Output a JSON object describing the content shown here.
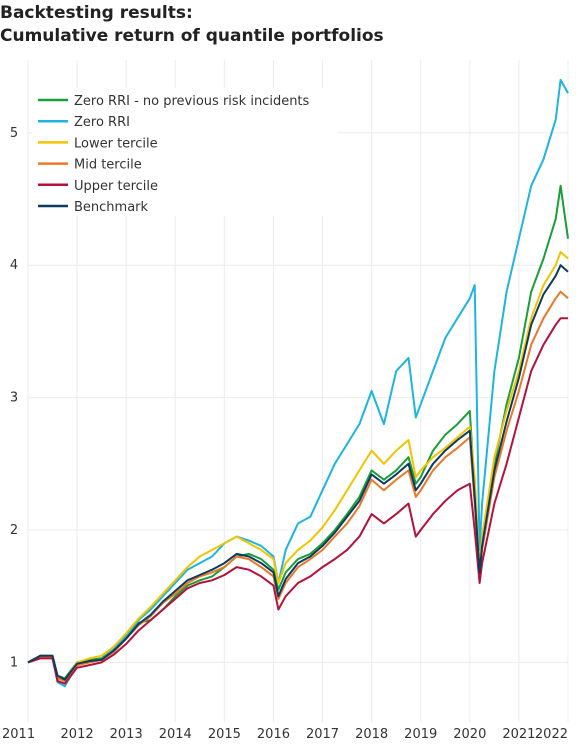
{
  "chart_data": {
    "type": "line",
    "title_line1": "Backtesting results:",
    "title_line2": "Cumulative return of quantile portfolios",
    "xlabel": "",
    "ylabel": "",
    "xlim": [
      2011,
      2022
    ],
    "ylim": [
      0.55,
      5.55
    ],
    "x_ticks": [
      "2011",
      "2012",
      "2013",
      "2014",
      "2015",
      "2016",
      "2017",
      "2018",
      "2019",
      "2020",
      "2021",
      "2022"
    ],
    "y_ticks": [
      "1",
      "2",
      "3",
      "4",
      "5"
    ],
    "grid": true,
    "legend_position": "top-left",
    "x": [
      2011.0,
      2011.25,
      2011.5,
      2011.6,
      2011.75,
      2012.0,
      2012.25,
      2012.5,
      2012.75,
      2013.0,
      2013.25,
      2013.5,
      2013.75,
      2014.0,
      2014.25,
      2014.5,
      2014.75,
      2015.0,
      2015.25,
      2015.5,
      2015.75,
      2016.0,
      2016.1,
      2016.25,
      2016.5,
      2016.75,
      2017.0,
      2017.25,
      2017.5,
      2017.75,
      2018.0,
      2018.25,
      2018.5,
      2018.75,
      2018.9,
      2019.0,
      2019.25,
      2019.5,
      2019.75,
      2020.0,
      2020.1,
      2020.2,
      2020.25,
      2020.5,
      2020.75,
      2021.0,
      2021.25,
      2021.5,
      2021.75,
      2021.85,
      2022.0
    ],
    "series": [
      {
        "name": "Zero RRI - no previous risk incidents",
        "color": "#1a9e3a",
        "values": [
          1.0,
          1.05,
          1.05,
          0.9,
          0.88,
          1.0,
          1.02,
          1.03,
          1.1,
          1.2,
          1.3,
          1.32,
          1.4,
          1.5,
          1.58,
          1.62,
          1.65,
          1.72,
          1.8,
          1.82,
          1.78,
          1.7,
          1.55,
          1.68,
          1.78,
          1.82,
          1.9,
          2.0,
          2.12,
          2.25,
          2.45,
          2.38,
          2.45,
          2.55,
          2.35,
          2.4,
          2.6,
          2.72,
          2.8,
          2.9,
          2.3,
          1.65,
          1.9,
          2.5,
          2.95,
          3.3,
          3.8,
          4.05,
          4.35,
          4.6,
          4.2
        ]
      },
      {
        "name": "Zero RRI",
        "color": "#1fb4e0",
        "values": [
          1.0,
          1.05,
          1.05,
          0.85,
          0.82,
          0.98,
          1.0,
          1.02,
          1.1,
          1.2,
          1.32,
          1.4,
          1.5,
          1.6,
          1.7,
          1.75,
          1.8,
          1.9,
          1.95,
          1.92,
          1.88,
          1.8,
          1.6,
          1.85,
          2.05,
          2.1,
          2.3,
          2.5,
          2.65,
          2.8,
          3.05,
          2.8,
          3.2,
          3.3,
          2.85,
          2.95,
          3.2,
          3.45,
          3.6,
          3.75,
          3.85,
          1.85,
          2.2,
          3.2,
          3.8,
          4.2,
          4.6,
          4.8,
          5.1,
          5.4,
          5.3
        ]
      },
      {
        "name": "Lower tercile",
        "color": "#f0c400",
        "values": [
          1.0,
          1.05,
          1.05,
          0.88,
          0.86,
          1.0,
          1.03,
          1.05,
          1.12,
          1.22,
          1.33,
          1.42,
          1.52,
          1.62,
          1.72,
          1.8,
          1.85,
          1.9,
          1.95,
          1.9,
          1.85,
          1.78,
          1.6,
          1.75,
          1.85,
          1.92,
          2.02,
          2.15,
          2.3,
          2.45,
          2.6,
          2.5,
          2.6,
          2.68,
          2.4,
          2.45,
          2.55,
          2.62,
          2.7,
          2.78,
          2.4,
          1.7,
          1.95,
          2.55,
          2.9,
          3.2,
          3.6,
          3.85,
          4.0,
          4.1,
          4.05
        ]
      },
      {
        "name": "Mid tercile",
        "color": "#e8792a",
        "values": [
          1.0,
          1.04,
          1.04,
          0.88,
          0.86,
          0.98,
          1.0,
          1.02,
          1.08,
          1.18,
          1.28,
          1.35,
          1.45,
          1.52,
          1.6,
          1.65,
          1.68,
          1.72,
          1.8,
          1.78,
          1.72,
          1.65,
          1.48,
          1.6,
          1.72,
          1.78,
          1.85,
          1.95,
          2.05,
          2.18,
          2.38,
          2.3,
          2.38,
          2.45,
          2.25,
          2.3,
          2.45,
          2.55,
          2.62,
          2.7,
          2.2,
          1.65,
          1.85,
          2.4,
          2.75,
          3.05,
          3.4,
          3.6,
          3.75,
          3.8,
          3.75
        ]
      },
      {
        "name": "Upper tercile",
        "color": "#b3123a",
        "values": [
          1.0,
          1.03,
          1.03,
          0.86,
          0.84,
          0.96,
          0.98,
          1.0,
          1.06,
          1.14,
          1.24,
          1.32,
          1.4,
          1.48,
          1.56,
          1.6,
          1.62,
          1.66,
          1.72,
          1.7,
          1.65,
          1.58,
          1.4,
          1.5,
          1.6,
          1.65,
          1.72,
          1.78,
          1.85,
          1.95,
          2.12,
          2.05,
          2.12,
          2.2,
          1.95,
          2.0,
          2.12,
          2.22,
          2.3,
          2.35,
          2.0,
          1.6,
          1.75,
          2.2,
          2.5,
          2.85,
          3.2,
          3.4,
          3.55,
          3.6,
          3.6
        ]
      },
      {
        "name": "Benchmark",
        "color": "#0f3a5f",
        "values": [
          1.0,
          1.05,
          1.05,
          0.9,
          0.87,
          0.99,
          1.01,
          1.02,
          1.09,
          1.18,
          1.29,
          1.36,
          1.46,
          1.54,
          1.62,
          1.66,
          1.7,
          1.75,
          1.82,
          1.8,
          1.75,
          1.68,
          1.5,
          1.63,
          1.75,
          1.8,
          1.88,
          1.98,
          2.1,
          2.22,
          2.42,
          2.35,
          2.42,
          2.5,
          2.3,
          2.35,
          2.5,
          2.6,
          2.68,
          2.75,
          2.25,
          1.68,
          1.88,
          2.45,
          2.82,
          3.15,
          3.55,
          3.78,
          3.92,
          4.0,
          3.95
        ]
      }
    ]
  }
}
